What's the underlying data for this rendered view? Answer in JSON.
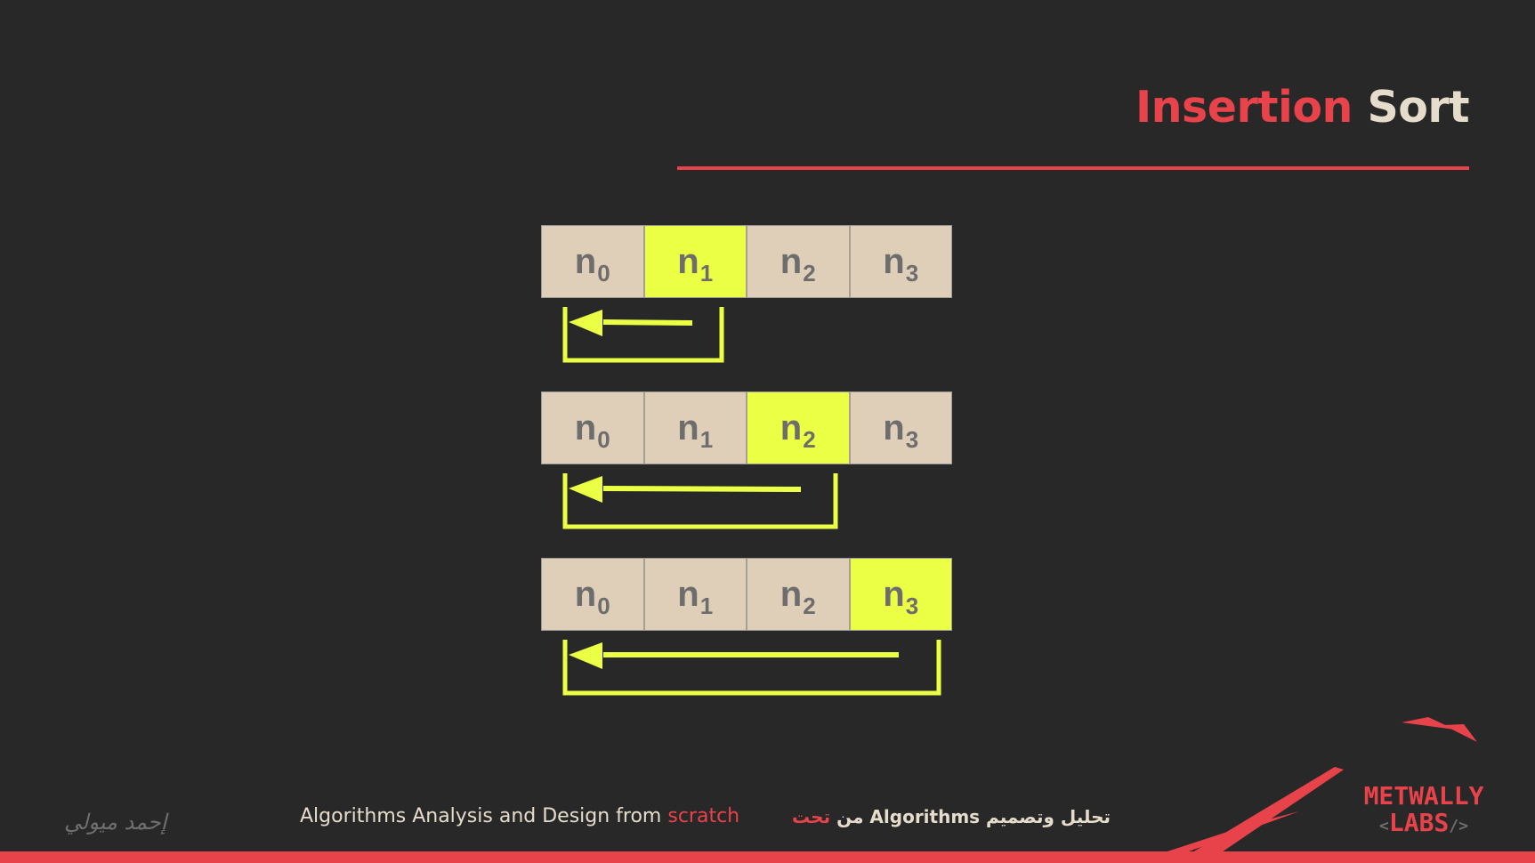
{
  "title": {
    "word1": "Insertion",
    "word2": "Sort"
  },
  "colors": {
    "background": "#282828",
    "accent": "#e8434a",
    "cream": "#e6dccb",
    "cell": "#e0cfb8",
    "highlight": "#ebff45",
    "cell_text": "#6d6d6d"
  },
  "diagram": {
    "rows": [
      {
        "cells": [
          {
            "base": "n",
            "sub": "0",
            "active": false
          },
          {
            "base": "n",
            "sub": "1",
            "active": true
          },
          {
            "base": "n",
            "sub": "2",
            "active": false
          },
          {
            "base": "n",
            "sub": "3",
            "active": false
          }
        ],
        "arrow": "leftward arrow into a bracket spanning n0 to n1"
      },
      {
        "cells": [
          {
            "base": "n",
            "sub": "0",
            "active": false
          },
          {
            "base": "n",
            "sub": "1",
            "active": false
          },
          {
            "base": "n",
            "sub": "2",
            "active": true
          },
          {
            "base": "n",
            "sub": "3",
            "active": false
          }
        ],
        "arrow": "leftward arrow into a bracket spanning n0 to n2"
      },
      {
        "cells": [
          {
            "base": "n",
            "sub": "0",
            "active": false
          },
          {
            "base": "n",
            "sub": "1",
            "active": false
          },
          {
            "base": "n",
            "sub": "2",
            "active": false
          },
          {
            "base": "n",
            "sub": "3",
            "active": true
          }
        ],
        "arrow": "leftward arrow into a bracket spanning n0 to n3"
      }
    ]
  },
  "footer": {
    "signature": "إحمد ميولي",
    "english_prefix": "Algorithms Analysis and Design from ",
    "english_highlight": "scratch",
    "arabic_main": "تحليل وتصميم Algorithms من ",
    "arabic_highlight": "تحت"
  },
  "logo": {
    "line1": "METWALLY",
    "line2": "LABS",
    "tag_open": "<",
    "tag_close": "/>"
  }
}
